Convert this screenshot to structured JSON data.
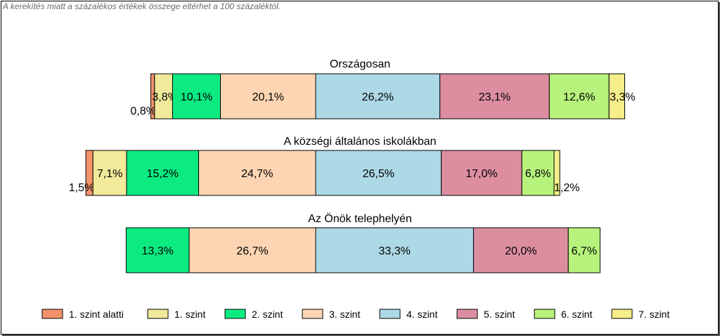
{
  "note": "A kerekítés miatt a  százalékos értékek összege eltérhet a 100 százaléktól.",
  "colors": {
    "1. szint alatti": "#f4936b",
    "1. szint": "#f0ea9a",
    "2. szint": "#0ceb82",
    "3. szint": "#fdd5b2",
    "4. szint": "#add8e6",
    "5. szint": "#dc8ea0",
    "6. szint": "#b7f37c",
    "7. szint": "#f5ee8a"
  },
  "chart_data": {
    "type": "bar",
    "orientation": "horizontal",
    "stacked": true,
    "centered": true,
    "legend_position": "bottom",
    "categories": [
      "1. szint alatti",
      "1. szint",
      "2. szint",
      "3. szint",
      "4. szint",
      "5. szint",
      "6. szint",
      "7. szint"
    ],
    "rows": [
      {
        "title": "Országosan",
        "values": [
          0.8,
          3.8,
          10.1,
          20.1,
          26.2,
          23.1,
          12.6,
          3.3
        ],
        "labels": [
          "0,8%",
          "3,8%",
          "10,1%",
          "20,1%",
          "26,2%",
          "23,1%",
          "12,6%",
          "3,3%"
        ]
      },
      {
        "title": "A községi általános iskolákban",
        "values": [
          1.5,
          7.1,
          15.2,
          24.7,
          26.5,
          17.0,
          6.8,
          1.2
        ],
        "labels": [
          "1,5%",
          "7,1%",
          "15,2%",
          "24,7%",
          "26,5%",
          "17,0%",
          "6,8%",
          "1,2%"
        ]
      },
      {
        "title": "Az Önök telephelyén",
        "values": [
          0,
          0,
          13.3,
          26.7,
          33.3,
          20.0,
          6.7,
          0
        ],
        "labels": [
          "",
          "",
          "13,3%",
          "26,7%",
          "33,3%",
          "20,0%",
          "6,7%",
          ""
        ]
      }
    ]
  }
}
